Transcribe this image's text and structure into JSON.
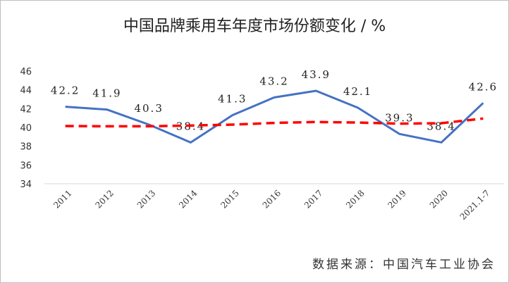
{
  "title": "中国品牌乘用车年度市场份额变化 / %",
  "source": "数据来源：中国汽车工业协会",
  "chart_data": {
    "type": "line",
    "title": "中国品牌乘用车年度市场份额变化 / %",
    "categories": [
      "2011",
      "2012",
      "2013",
      "2014",
      "2015",
      "2016",
      "2017",
      "2018",
      "2019",
      "2020",
      "2021.1-7"
    ],
    "series": [
      {
        "values": [
          42.2,
          41.9,
          40.3,
          38.4,
          41.3,
          43.2,
          43.9,
          42.1,
          39.3,
          38.4,
          42.6
        ],
        "data_labels": [
          "42.2",
          "41.9",
          "40.3",
          "38.4",
          "41.3",
          "43.2",
          "43.9",
          "42.1",
          "39.3",
          "38.4",
          "42.6"
        ],
        "color": "#4472c4",
        "style": "solid"
      },
      {
        "values": [
          40.15,
          40.12,
          40.12,
          40.2,
          40.3,
          40.48,
          40.58,
          40.52,
          40.4,
          40.45,
          40.95
        ],
        "color": "#ff0000",
        "style": "dashed",
        "role": "trendline"
      }
    ],
    "yticks": [
      "34",
      "36",
      "38",
      "40",
      "42",
      "44",
      "46"
    ],
    "ylim": [
      34,
      46
    ],
    "grid": false,
    "xlabel": "",
    "ylabel": ""
  }
}
